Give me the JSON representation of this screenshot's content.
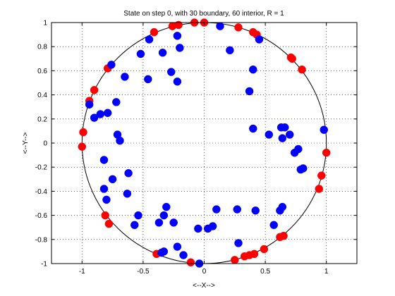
{
  "chart_data": {
    "type": "scatter",
    "title": "State on step 0, with 30 boundary, 60 interior, R = 1",
    "xlabel": "<--X-->",
    "ylabel": "<--Y-->",
    "xlim": [
      -1.25,
      1.25
    ],
    "ylim": [
      -1,
      1
    ],
    "xticks": [
      -1,
      -0.5,
      0,
      0.5,
      1
    ],
    "xtick_labels": [
      "-1",
      "-0.5",
      "0",
      "0.5",
      "1"
    ],
    "yticks": [
      -1,
      -0.8,
      -0.6,
      -0.4,
      -0.2,
      0,
      0.2,
      0.4,
      0.6,
      0.8,
      1
    ],
    "ytick_labels": [
      "-1",
      "-0.8",
      "-0.6",
      "-0.4",
      "-0.2",
      "0",
      "0.2",
      "0.4",
      "0.6",
      "0.8",
      "1"
    ],
    "grid": true,
    "circle": {
      "cx": 0,
      "cy": 0,
      "r": 1,
      "color": "#000000"
    },
    "series": [
      {
        "color": "#ff0000",
        "points": [
          [
            -0.41,
            0.92
          ],
          [
            -0.26,
            0.97
          ],
          [
            -0.21,
            0.98
          ],
          [
            -0.08,
            1.0
          ],
          [
            0.0,
            1.0
          ],
          [
            0.28,
            0.96
          ],
          [
            0.4,
            0.92
          ],
          [
            0.43,
            0.9
          ],
          [
            0.71,
            0.71
          ],
          [
            0.72,
            0.7
          ],
          [
            0.8,
            0.61
          ],
          [
            -0.79,
            0.62
          ],
          [
            -0.9,
            0.44
          ],
          [
            -0.94,
            0.35
          ],
          [
            -0.99,
            0.09
          ],
          [
            -1.0,
            -0.03
          ],
          [
            1.0,
            -0.08
          ],
          [
            0.96,
            -0.27
          ],
          [
            0.94,
            -0.38
          ],
          [
            -0.81,
            -0.6
          ],
          [
            -0.78,
            -0.67
          ],
          [
            0.65,
            -0.77
          ],
          [
            0.62,
            -0.78
          ],
          [
            0.49,
            -0.88
          ],
          [
            0.41,
            -0.92
          ],
          [
            0.37,
            -0.93
          ],
          [
            0.33,
            -0.94
          ],
          [
            0.25,
            -0.97
          ],
          [
            -0.39,
            -0.92
          ],
          [
            -0.11,
            -0.99
          ]
        ]
      },
      {
        "color": "#0000ff",
        "points": [
          [
            0.13,
            0.97
          ],
          [
            -0.22,
            0.89
          ],
          [
            -0.45,
            0.86
          ],
          [
            -0.2,
            0.79
          ],
          [
            -0.34,
            0.75
          ],
          [
            -0.52,
            0.74
          ],
          [
            -0.76,
            0.65
          ],
          [
            0.21,
            0.77
          ],
          [
            0.45,
            0.86
          ],
          [
            -0.65,
            0.55
          ],
          [
            -0.27,
            0.59
          ],
          [
            -0.22,
            0.51
          ],
          [
            -0.46,
            0.53
          ],
          [
            0.4,
            0.61
          ],
          [
            0.37,
            0.43
          ],
          [
            -0.72,
            0.34
          ],
          [
            -0.94,
            0.32
          ],
          [
            -0.9,
            0.21
          ],
          [
            -0.85,
            0.24
          ],
          [
            -0.79,
            0.25
          ],
          [
            -0.71,
            0.07
          ],
          [
            -0.69,
            0.02
          ],
          [
            0.4,
            0.12
          ],
          [
            0.53,
            0.07
          ],
          [
            0.63,
            0.13
          ],
          [
            0.66,
            0.13
          ],
          [
            0.7,
            0.07
          ],
          [
            0.64,
            0.04
          ],
          [
            0.98,
            0.11
          ],
          [
            0.74,
            -0.08
          ],
          [
            0.77,
            -0.05
          ],
          [
            0.79,
            -0.22
          ],
          [
            0.81,
            -0.21
          ],
          [
            -0.82,
            -0.14
          ],
          [
            -0.62,
            -0.25
          ],
          [
            -0.75,
            -0.3
          ],
          [
            -0.82,
            -0.38
          ],
          [
            -0.8,
            -0.47
          ],
          [
            -0.63,
            -0.42
          ],
          [
            -0.54,
            -0.6
          ],
          [
            -0.57,
            -0.68
          ],
          [
            -0.31,
            -0.53
          ],
          [
            -0.33,
            -0.6
          ],
          [
            -0.37,
            -0.66
          ],
          [
            -0.25,
            -0.66
          ],
          [
            0.1,
            -0.55
          ],
          [
            0.27,
            -0.55
          ],
          [
            0.42,
            -0.56
          ],
          [
            0.64,
            -0.53
          ],
          [
            0.62,
            -0.56
          ],
          [
            0.07,
            -0.69
          ],
          [
            0.03,
            -0.71
          ],
          [
            -0.05,
            -0.71
          ],
          [
            0.57,
            -0.68
          ],
          [
            0.28,
            -0.83
          ],
          [
            -0.35,
            -0.91
          ],
          [
            -0.33,
            -0.9
          ],
          [
            -0.22,
            -0.86
          ],
          [
            -0.17,
            -0.93
          ],
          [
            -0.04,
            -1.0
          ]
        ]
      }
    ]
  }
}
